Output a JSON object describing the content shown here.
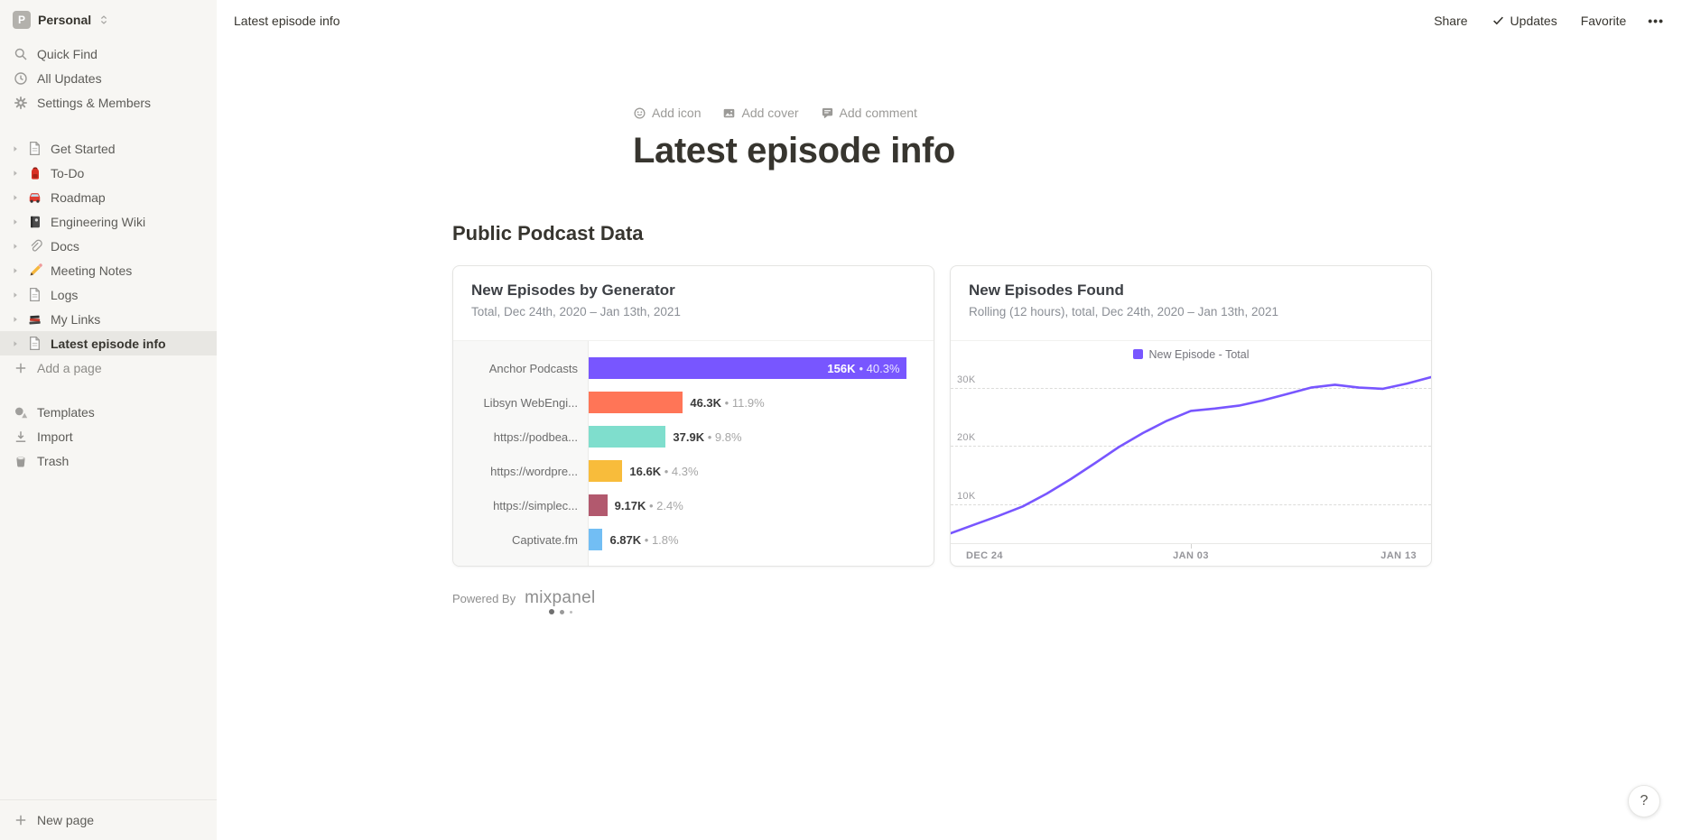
{
  "workspace": {
    "name": "Personal",
    "initial": "P"
  },
  "sidebar": {
    "top_items": [
      {
        "icon": "search-icon",
        "label": "Quick Find"
      },
      {
        "icon": "clock-icon",
        "label": "All Updates"
      },
      {
        "icon": "gear-icon",
        "label": "Settings & Members"
      }
    ],
    "pages": [
      {
        "icon": "doc-icon",
        "label": "Get Started",
        "selected": false
      },
      {
        "icon": "backpack-icon",
        "label": "To-Do",
        "selected": false
      },
      {
        "icon": "car-icon",
        "label": "Roadmap",
        "selected": false
      },
      {
        "icon": "notebook-icon",
        "label": "Engineering Wiki",
        "selected": false
      },
      {
        "icon": "paperclip-icon",
        "label": "Docs",
        "selected": false
      },
      {
        "icon": "pencil-icon",
        "label": "Meeting Notes",
        "selected": false
      },
      {
        "icon": "doc-icon",
        "label": "Logs",
        "selected": false
      },
      {
        "icon": "books-icon",
        "label": "My Links",
        "selected": false
      },
      {
        "icon": "doc-icon",
        "label": "Latest episode info",
        "selected": true
      }
    ],
    "add_page_label": "Add a page",
    "bottom_items": [
      {
        "icon": "templates-icon",
        "label": "Templates"
      },
      {
        "icon": "import-icon",
        "label": "Import"
      },
      {
        "icon": "trash-icon",
        "label": "Trash"
      }
    ],
    "new_page_label": "New page"
  },
  "topbar": {
    "breadcrumb": "Latest episode info",
    "share_label": "Share",
    "updates_label": "Updates",
    "favorite_label": "Favorite",
    "more_label": "•••"
  },
  "page": {
    "add_icon_label": "Add icon",
    "add_cover_label": "Add cover",
    "add_comment_label": "Add comment",
    "title": "Latest episode info",
    "section_heading": "Public Podcast Data",
    "powered_by_label": "Powered By",
    "provider_label": "mixpanel",
    "help_label": "?"
  },
  "colors": {
    "accent_purple": "#7856FF",
    "sidebar_bg": "#f7f6f3",
    "selected_bg": "#e8e7e3"
  },
  "chart_data": [
    {
      "type": "bar",
      "orientation": "horizontal",
      "title": "New Episodes by Generator",
      "subtitle": "Total, Dec 24th, 2020 – Jan 13th, 2021",
      "categories": [
        "Anchor Podcasts",
        "Libsyn WebEngi...",
        "https://podbea...",
        "https://wordpre...",
        "https://simplec...",
        "Captivate.fm"
      ],
      "values": [
        156000,
        46300,
        37900,
        16600,
        9170,
        6870
      ],
      "value_labels": [
        "156K",
        "46.3K",
        "37.9K",
        "16.6K",
        "9.17K",
        "6.87K"
      ],
      "pct_labels": [
        "40.3%",
        "11.9%",
        "9.8%",
        "4.3%",
        "2.4%",
        "1.8%"
      ],
      "bar_colors": [
        "#7856FF",
        "#FF7557",
        "#7FDECD",
        "#F8BC3B",
        "#B2596E",
        "#72BEF4"
      ],
      "xlim": [
        0,
        165000
      ],
      "grid": false
    },
    {
      "type": "line",
      "title": "New Episodes Found",
      "subtitle": "Rolling (12 hours), total, Dec 24th, 2020 – Jan 13th, 2021",
      "legend": [
        {
          "label": "New Episode - Total",
          "color": "#7856FF"
        }
      ],
      "legend_position": "top-center",
      "x_tick_labels": [
        "DEC 24",
        "JAN 03",
        "JAN 13"
      ],
      "y_tick_labels": [
        "10K",
        "20K",
        "30K"
      ],
      "y_tick_values": [
        10000,
        20000,
        30000
      ],
      "ylim": [
        3300,
        33500
      ],
      "grid": "dashed-horizontal",
      "x_days": [
        "Dec 24",
        "Dec 25",
        "Dec 26",
        "Dec 27",
        "Dec 28",
        "Dec 29",
        "Dec 30",
        "Dec 31",
        "Jan 01",
        "Jan 02",
        "Jan 03",
        "Jan 04",
        "Jan 05",
        "Jan 06",
        "Jan 07",
        "Jan 08",
        "Jan 09",
        "Jan 10",
        "Jan 11",
        "Jan 12",
        "Jan 13"
      ],
      "values": [
        5000,
        6500,
        8000,
        9600,
        11800,
        14300,
        17000,
        19800,
        22200,
        24300,
        26000,
        26400,
        26900,
        27800,
        28900,
        30000,
        30500,
        30000,
        29800,
        30700,
        31800
      ]
    }
  ]
}
